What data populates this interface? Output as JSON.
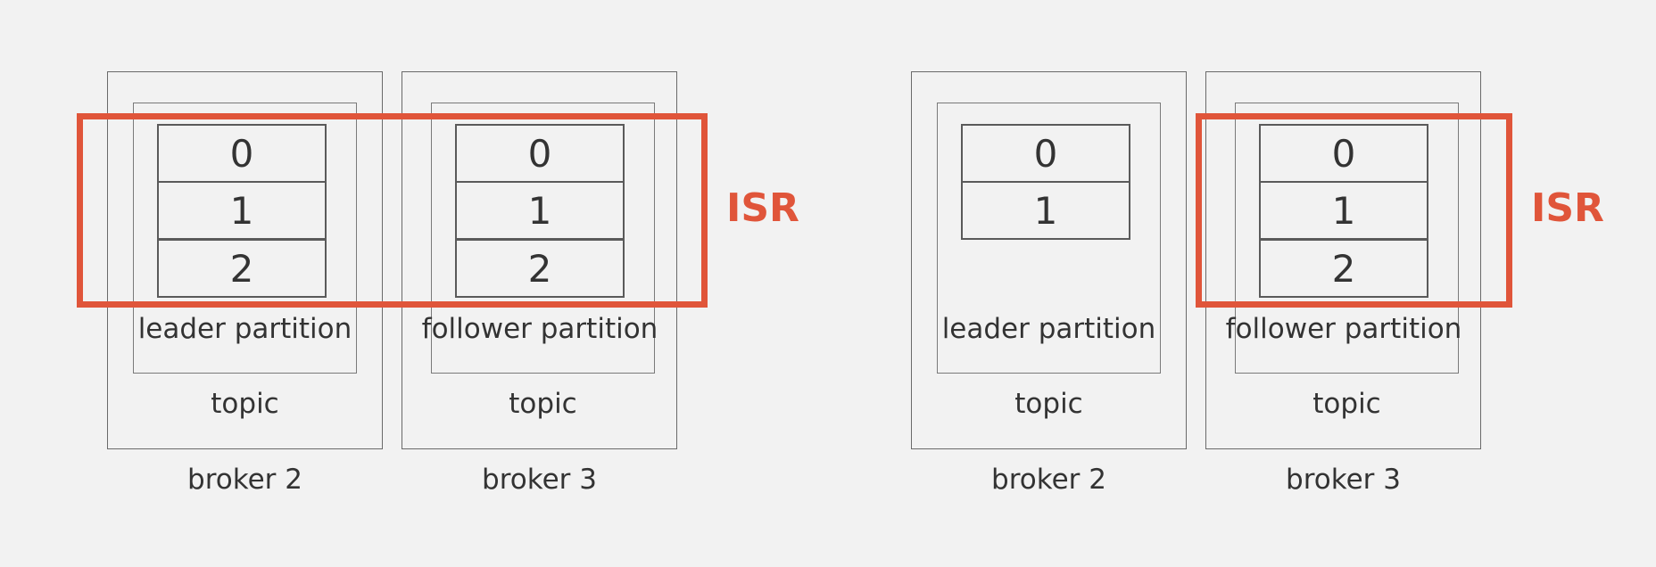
{
  "colors": {
    "background": "#f2f2f2",
    "box_stroke": "#6a6a6a",
    "isr_accent": "#e0553a",
    "text": "#333333"
  },
  "isr_label": "ISR",
  "panels": [
    {
      "brokers": [
        {
          "label": "broker 2",
          "topic_label": "topic",
          "partition_label": "leader partition",
          "offsets": [
            "0",
            "1",
            "2"
          ]
        },
        {
          "label": "broker 3",
          "topic_label": "topic",
          "partition_label": "follower partition",
          "offsets": [
            "0",
            "1",
            "2"
          ]
        }
      ],
      "isr_members": [
        "broker 2",
        "broker 3"
      ]
    },
    {
      "brokers": [
        {
          "label": "broker 2",
          "topic_label": "topic",
          "partition_label": "leader partition",
          "offsets": [
            "0",
            "1"
          ]
        },
        {
          "label": "broker 3",
          "topic_label": "topic",
          "partition_label": "follower partition",
          "offsets": [
            "0",
            "1",
            "2"
          ]
        }
      ],
      "isr_members": [
        "broker 3"
      ]
    }
  ]
}
